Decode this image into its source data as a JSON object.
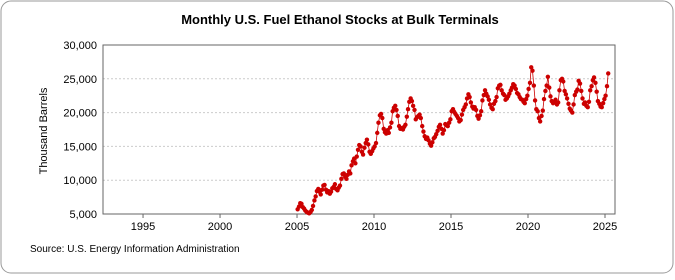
{
  "chart_data": {
    "type": "line",
    "title": "Monthly U.S. Fuel Ethanol Stocks at Bulk Terminals",
    "ylabel": "Thousand Barrels",
    "source": "Source: U.S. Energy Information Administration",
    "xlim": [
      1992.4,
      2025.65
    ],
    "xticks": [
      1995,
      2000,
      2005,
      2010,
      2015,
      2020,
      2025
    ],
    "ylim": [
      5000,
      30000
    ],
    "yticks": [
      {
        "value": 5000,
        "label": "5,000"
      },
      {
        "value": 10000,
        "label": "10,000"
      },
      {
        "value": 15000,
        "label": "15,000"
      },
      {
        "value": 20000,
        "label": "20,000"
      },
      {
        "value": 25000,
        "label": "25,000"
      },
      {
        "value": 30000,
        "label": "30,000"
      }
    ],
    "grid": true,
    "x": [
      2005.04,
      2005.13,
      2005.21,
      2005.29,
      2005.38,
      2005.46,
      2005.54,
      2005.63,
      2005.71,
      2005.79,
      2005.88,
      2005.96,
      2006.04,
      2006.13,
      2006.21,
      2006.29,
      2006.38,
      2006.46,
      2006.54,
      2006.63,
      2006.71,
      2006.79,
      2006.88,
      2006.96,
      2007.04,
      2007.13,
      2007.21,
      2007.29,
      2007.38,
      2007.46,
      2007.54,
      2007.63,
      2007.71,
      2007.79,
      2007.88,
      2007.96,
      2008.04,
      2008.13,
      2008.21,
      2008.29,
      2008.38,
      2008.46,
      2008.54,
      2008.63,
      2008.71,
      2008.79,
      2008.88,
      2008.96,
      2009.04,
      2009.13,
      2009.21,
      2009.29,
      2009.38,
      2009.46,
      2009.54,
      2009.63,
      2009.71,
      2009.79,
      2009.88,
      2009.96,
      2010.04,
      2010.13,
      2010.21,
      2010.29,
      2010.38,
      2010.46,
      2010.54,
      2010.63,
      2010.71,
      2010.79,
      2010.88,
      2010.96,
      2011.04,
      2011.13,
      2011.21,
      2011.29,
      2011.38,
      2011.46,
      2011.54,
      2011.63,
      2011.71,
      2011.79,
      2011.88,
      2011.96,
      2012.04,
      2012.13,
      2012.21,
      2012.29,
      2012.38,
      2012.46,
      2012.54,
      2012.63,
      2012.71,
      2012.79,
      2012.88,
      2012.96,
      2013.04,
      2013.13,
      2013.21,
      2013.29,
      2013.38,
      2013.46,
      2013.54,
      2013.63,
      2013.71,
      2013.79,
      2013.88,
      2013.96,
      2014.04,
      2014.13,
      2014.21,
      2014.29,
      2014.38,
      2014.46,
      2014.54,
      2014.63,
      2014.71,
      2014.79,
      2014.88,
      2014.96,
      2015.04,
      2015.13,
      2015.21,
      2015.29,
      2015.38,
      2015.46,
      2015.54,
      2015.63,
      2015.71,
      2015.79,
      2015.88,
      2015.96,
      2016.04,
      2016.13,
      2016.21,
      2016.29,
      2016.38,
      2016.46,
      2016.54,
      2016.63,
      2016.71,
      2016.79,
      2016.88,
      2016.96,
      2017.04,
      2017.13,
      2017.21,
      2017.29,
      2017.38,
      2017.46,
      2017.54,
      2017.63,
      2017.71,
      2017.79,
      2017.88,
      2017.96,
      2018.04,
      2018.13,
      2018.21,
      2018.29,
      2018.38,
      2018.46,
      2018.54,
      2018.63,
      2018.71,
      2018.79,
      2018.88,
      2018.96,
      2019.04,
      2019.13,
      2019.21,
      2019.29,
      2019.38,
      2019.46,
      2019.54,
      2019.63,
      2019.71,
      2019.79,
      2019.88,
      2019.96,
      2020.04,
      2020.13,
      2020.21,
      2020.29,
      2020.38,
      2020.46,
      2020.54,
      2020.63,
      2020.71,
      2020.79,
      2020.88,
      2020.96,
      2021.04,
      2021.13,
      2021.21,
      2021.29,
      2021.38,
      2021.46,
      2021.54,
      2021.63,
      2021.71,
      2021.79,
      2021.88,
      2021.96,
      2022.04,
      2022.13,
      2022.21,
      2022.29,
      2022.38,
      2022.46,
      2022.54,
      2022.63,
      2022.71,
      2022.79,
      2022.88,
      2022.96,
      2023.04,
      2023.13,
      2023.21,
      2023.29,
      2023.38,
      2023.46,
      2023.54,
      2023.63,
      2023.71,
      2023.79,
      2023.88,
      2023.96,
      2024.04,
      2024.13,
      2024.21,
      2024.29,
      2024.38,
      2024.46,
      2024.54,
      2024.63,
      2024.71,
      2024.79,
      2024.88,
      2024.96,
      2025.04,
      2025.13,
      2025.21
    ],
    "series": [
      {
        "name": "Fuel Ethanol Stocks",
        "color": "#cc0000",
        "values": [
          5700,
          6100,
          6600,
          6500,
          6000,
          5800,
          5500,
          5300,
          5200,
          5100,
          5300,
          5600,
          6200,
          7000,
          7600,
          8400,
          8700,
          8300,
          7900,
          8600,
          9200,
          9300,
          8600,
          8200,
          8400,
          8000,
          8300,
          8800,
          9000,
          9400,
          8700,
          8500,
          8900,
          9200,
          10200,
          10900,
          11000,
          10500,
          10200,
          10800,
          11300,
          11000,
          12200,
          12800,
          13200,
          12500,
          13500,
          14500,
          15200,
          15000,
          14200,
          13800,
          14800,
          15500,
          16000,
          15300,
          14200,
          13900,
          14300,
          14700,
          15000,
          15500,
          17000,
          18500,
          19600,
          19800,
          19200,
          17600,
          17100,
          16900,
          17400,
          17000,
          17800,
          18500,
          20200,
          20700,
          21000,
          20400,
          19500,
          18000,
          17600,
          17700,
          17500,
          17900,
          18200,
          19400,
          20500,
          21600,
          22100,
          21700,
          21000,
          20400,
          19000,
          19300,
          19500,
          19700,
          19200,
          18000,
          17200,
          16500,
          16100,
          16300,
          15900,
          15400,
          15100,
          15600,
          16200,
          16400,
          16800,
          17300,
          17900,
          18200,
          17600,
          16900,
          17400,
          18300,
          18100,
          18000,
          18500,
          19000,
          20200,
          20500,
          20100,
          19800,
          19500,
          19200,
          18700,
          18900,
          19700,
          20400,
          20800,
          21200,
          22100,
          22700,
          22300,
          21500,
          20900,
          20600,
          20800,
          20400,
          19500,
          19100,
          19600,
          20200,
          21800,
          22600,
          23300,
          22800,
          22400,
          21900,
          21200,
          20700,
          20500,
          21300,
          21700,
          22300,
          23600,
          24000,
          24100,
          23300,
          22800,
          22600,
          21900,
          22100,
          22400,
          22800,
          23300,
          23700,
          24200,
          24000,
          23500,
          22900,
          22700,
          22300,
          22000,
          21900,
          21600,
          21400,
          22000,
          22500,
          23500,
          24400,
          26700,
          26200,
          24000,
          21800,
          20500,
          20200,
          19200,
          18700,
          19500,
          20300,
          22000,
          23200,
          24000,
          25300,
          23700,
          22400,
          21700,
          21400,
          21600,
          21900,
          21200,
          21500,
          23300,
          24800,
          25000,
          24600,
          23200,
          22700,
          22100,
          21300,
          20600,
          20300,
          20000,
          21200,
          22600,
          23100,
          23400,
          24700,
          24300,
          23200,
          22100,
          21300,
          21500,
          21000,
          20800,
          21600,
          23300,
          23900,
          24800,
          25200,
          24400,
          23100,
          21700,
          21300,
          20900,
          20800,
          21400,
          22000,
          22500,
          23900,
          25800
        ]
      }
    ]
  }
}
